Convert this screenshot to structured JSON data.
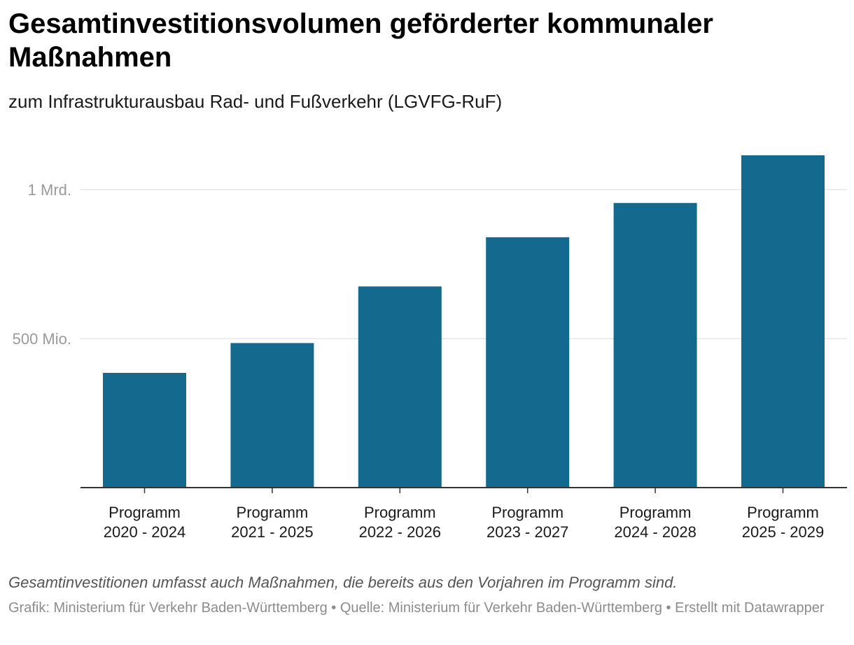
{
  "header": {
    "title": "Gesamtinvestitionsvolumen geförderter kommunaler Maßnahmen",
    "subtitle": "zum Infrastrukturausbau Rad- und Fußverkehr (LGVFG-RuF)"
  },
  "chart_data": {
    "type": "bar",
    "title": "Gesamtinvestitionsvolumen geförderter kommunaler Maßnahmen",
    "subtitle": "zum Infrastrukturausbau Rad- und Fußverkehr (LGVFG-RuF)",
    "xlabel": "",
    "ylabel": "",
    "categories": [
      [
        "Programm",
        "2020 - 2024"
      ],
      [
        "Programm",
        "2021 - 2025"
      ],
      [
        "Programm",
        "2022 - 2026"
      ],
      [
        "Programm",
        "2023 - 2027"
      ],
      [
        "Programm",
        "2024 - 2028"
      ],
      [
        "Programm",
        "2025 - 2029"
      ]
    ],
    "values": [
      385000000,
      485000000,
      675000000,
      840000000,
      955000000,
      1115000000
    ],
    "ylim": [
      0,
      1115000000
    ],
    "y_ticks": [
      {
        "value": 500000000,
        "label": "500 Mio."
      },
      {
        "value": 1000000000,
        "label": "1 Mrd."
      }
    ],
    "grid": true,
    "legend": "none",
    "bar_color": "#136a8e"
  },
  "footer": {
    "note": "Gesamtinvestitionen umfasst auch Maßnahmen, die bereits aus den Vorjahren im Programm sind.",
    "credits": "Grafik: Ministerium für Verkehr Baden-Württemberg • Quelle: Ministerium für Verkehr Baden-Württemberg • Erstellt mit Datawrapper"
  },
  "colors": {
    "bar": "#136a8e",
    "grid": "#e6e6e6",
    "axis": "#333333",
    "tick_text": "#9a9a9a"
  }
}
